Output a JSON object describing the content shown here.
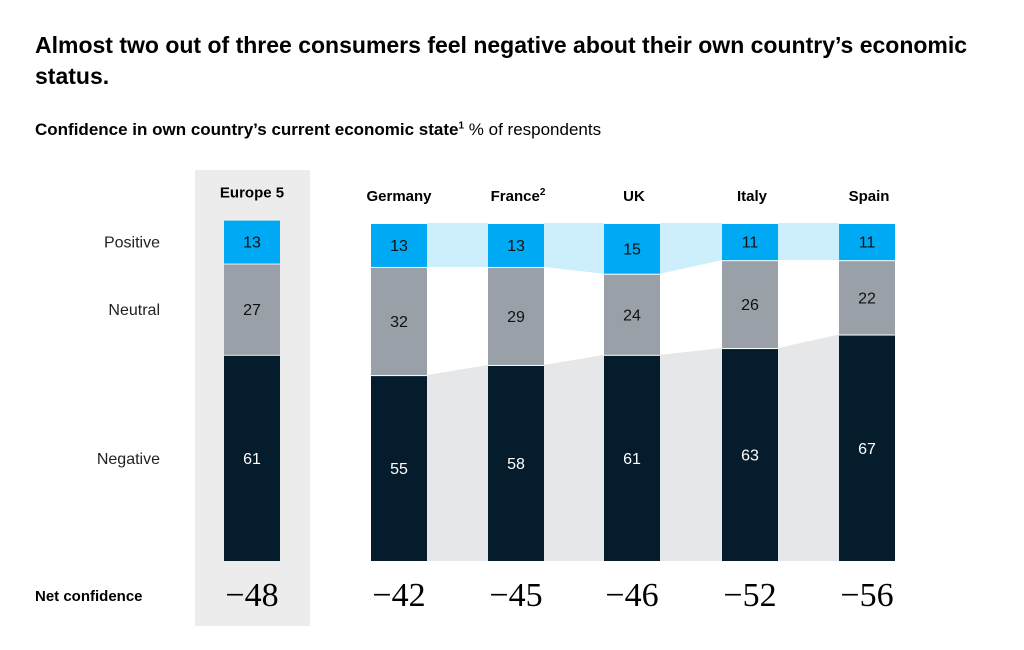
{
  "title": "Almost two out of three consumers feel negative about their own country’s economic status.",
  "subtitle": {
    "bold": "Confidence in own country’s current economic state",
    "footnote": "1",
    "unit": "% of respondents"
  },
  "colors": {
    "Positive": "#00a9f4",
    "Neutral": "#9aa0a8",
    "Negative": "#051c2c",
    "positive_band": "#cdeefb",
    "negative_band": "#e6e7e9",
    "highlight_panel": "#ececec"
  },
  "chart_data": {
    "type": "bar",
    "stacked": true,
    "categories": [
      "Europe 5",
      "Germany",
      "France",
      "UK",
      "Italy",
      "Spain"
    ],
    "category_footnotes": [
      "",
      "",
      "2",
      "",
      "",
      ""
    ],
    "series": [
      {
        "name": "Negative",
        "values": [
          61,
          55,
          58,
          61,
          63,
          67
        ]
      },
      {
        "name": "Neutral",
        "values": [
          27,
          32,
          29,
          24,
          26,
          22
        ]
      },
      {
        "name": "Positive",
        "values": [
          13,
          13,
          13,
          15,
          11,
          11
        ]
      }
    ],
    "net_confidence_label": "Net confidence",
    "net_confidence": [
      "−48",
      "−42",
      "−45",
      "−46",
      "−52",
      "−56"
    ],
    "ylim": [
      0,
      100
    ],
    "grid": false,
    "legend": "left row labels"
  }
}
